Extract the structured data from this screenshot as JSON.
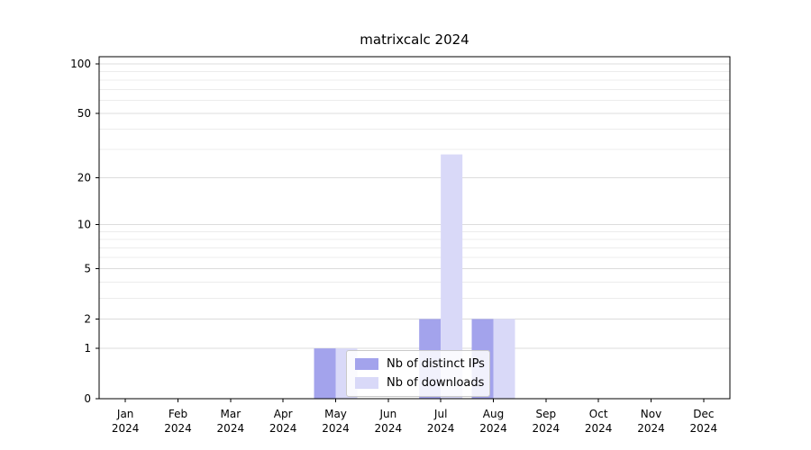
{
  "chart_data": {
    "type": "bar",
    "title": "matrixcalc 2024",
    "categories": [
      "Jan",
      "Feb",
      "Mar",
      "Apr",
      "May",
      "Jun",
      "Jul",
      "Aug",
      "Sep",
      "Oct",
      "Nov",
      "Dec"
    ],
    "category_year": "2024",
    "series": [
      {
        "name": "Nb of distinct IPs",
        "color": "#a3a3ec",
        "values": [
          0,
          0,
          0,
          0,
          1,
          0,
          2,
          2,
          0,
          0,
          0,
          0
        ]
      },
      {
        "name": "Nb of downloads",
        "color": "#d9d9f8",
        "values": [
          0,
          0,
          0,
          0,
          1,
          0,
          28,
          2,
          0,
          0,
          0,
          0
        ]
      }
    ],
    "yticks": [
      0,
      1,
      2,
      5,
      10,
      20,
      50,
      100
    ],
    "ylim": [
      0,
      100
    ],
    "yscale": "log1p",
    "grid": true,
    "legend_position": "lower-center"
  },
  "colors": {
    "axis": "#000000",
    "grid_major": "#dcdcdc",
    "grid_minor": "#ececec",
    "text": "#000000",
    "background": "#ffffff"
  }
}
